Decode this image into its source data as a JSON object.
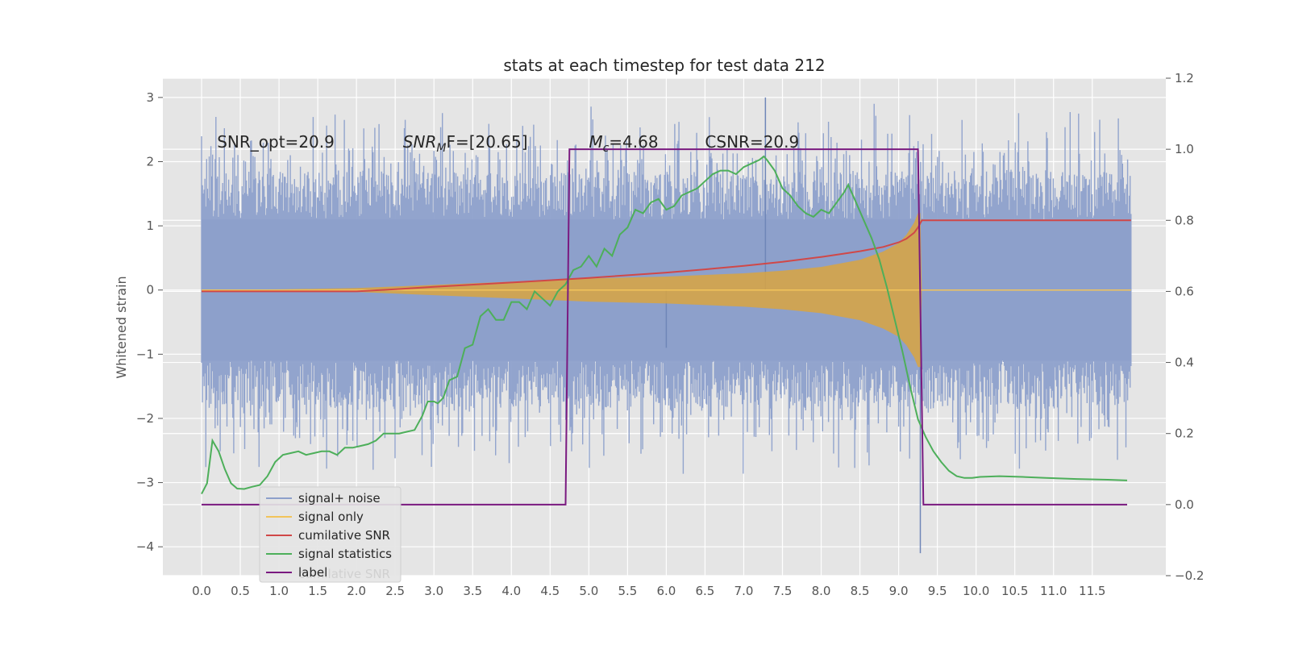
{
  "chart_data": {
    "type": "line",
    "title": "stats at each timestep for test data 212",
    "xlabel": "",
    "ylabel": "Whitened strain",
    "ylabel_right": "",
    "xlim": [
      -0.5,
      12.45
    ],
    "ylim": [
      -4.45,
      3.3
    ],
    "ylim_right": [
      -0.2,
      1.2
    ],
    "grid": true,
    "x_ticks": [
      "0.0",
      "0.5",
      "1.0",
      "1.5",
      "2.0",
      "2.5",
      "3.0",
      "3.5",
      "4.0",
      "4.5",
      "5.0",
      "5.5",
      "6.0",
      "6.5",
      "7.0",
      "7.5",
      "8.0",
      "8.5",
      "9.0",
      "9.5",
      "10.0",
      "10.5",
      "11.0",
      "11.5"
    ],
    "x_tick_values": [
      0.0,
      0.5,
      1.0,
      1.5,
      2.0,
      2.5,
      3.0,
      3.5,
      4.0,
      4.5,
      5.0,
      5.5,
      6.0,
      6.5,
      7.0,
      7.5,
      8.0,
      8.5,
      9.0,
      9.5,
      10.0,
      10.5,
      11.0,
      11.5
    ],
    "y_ticks": [
      "3",
      "2",
      "1",
      "0",
      "−1",
      "−2",
      "−3",
      "−4"
    ],
    "y_tick_values": [
      3,
      2,
      1,
      0,
      -1,
      -2,
      -3,
      -4
    ],
    "y_ticks_right": [
      "1.2",
      "1.0",
      "0.8",
      "0.6",
      "0.4",
      "0.2",
      "0.0",
      "−0.2"
    ],
    "y_tick_values_right": [
      1.2,
      1.0,
      0.8,
      0.6,
      0.4,
      0.2,
      0.0,
      -0.2
    ],
    "annotations": [
      {
        "text": "SNR_opt=20.9",
        "x": 0.2
      },
      {
        "text": "SNR",
        "sub": "M",
        "suffix": "F=[20.65]",
        "italic": true,
        "x": 2.6
      },
      {
        "text": "M",
        "sub": "c",
        "suffix": "=4.68",
        "italic": true,
        "x": 5.0
      },
      {
        "text": "CSNR=20.9",
        "x": 6.5
      }
    ],
    "annotation_y": 2.22,
    "legend": {
      "position": "lower left",
      "entries": [
        {
          "label": "signal+ noise",
          "color": "#8da0cb"
        },
        {
          "label": "signal only",
          "color": "#f2c45a"
        },
        {
          "label": "cumilative SNR",
          "color": "#d04848"
        },
        {
          "label": "signal statistics",
          "color": "#4daf5a"
        },
        {
          "label": "label",
          "color": "#7a1a80"
        }
      ],
      "ghost_text": "cumilative SNR"
    },
    "series": [
      {
        "name": "signal+ noise",
        "axis": "left",
        "color": "#8da0cb",
        "x_range": [
          0.0,
          12.0
        ],
        "envelope_typical": [
          -1.1,
          1.1
        ],
        "envelope_peak": [
          -3.3,
          3.0
        ],
        "notable_spikes": [
          {
            "x": 6.0,
            "y": -0.9
          },
          {
            "x": 9.28,
            "y": -4.1
          },
          {
            "x": 7.28,
            "y": 3.0
          }
        ]
      },
      {
        "name": "signal only",
        "axis": "left",
        "color": "#d9a441",
        "x": [
          0.0,
          1.0,
          2.0,
          3.0,
          4.0,
          5.0,
          6.0,
          7.0,
          7.5,
          8.0,
          8.5,
          8.8,
          9.0,
          9.1,
          9.2,
          9.25,
          9.28,
          9.3,
          12.0
        ],
        "amplitude": [
          0.0,
          0.01,
          0.03,
          0.08,
          0.13,
          0.18,
          0.21,
          0.26,
          0.3,
          0.36,
          0.47,
          0.6,
          0.73,
          0.86,
          1.05,
          1.2,
          1.2,
          0.0,
          0.0
        ]
      },
      {
        "name": "cumilative SNR",
        "axis": "right",
        "color": "#d04848",
        "x": [
          0.0,
          1.0,
          2.0,
          2.5,
          3.0,
          4.0,
          5.0,
          6.0,
          6.5,
          7.0,
          7.5,
          8.0,
          8.5,
          8.8,
          9.0,
          9.1,
          9.2,
          9.25,
          9.3,
          12.0
        ],
        "y": [
          0.6,
          0.6,
          0.6,
          0.606,
          0.613,
          0.625,
          0.638,
          0.653,
          0.662,
          0.672,
          0.683,
          0.697,
          0.713,
          0.725,
          0.738,
          0.748,
          0.765,
          0.78,
          0.8,
          0.8
        ]
      },
      {
        "name": "signal statistics",
        "axis": "right",
        "color": "#4daf5a",
        "x": [
          0.0,
          0.07,
          0.14,
          0.22,
          0.3,
          0.38,
          0.46,
          0.55,
          0.65,
          0.75,
          0.85,
          0.95,
          1.05,
          1.15,
          1.25,
          1.35,
          1.45,
          1.55,
          1.65,
          1.75,
          1.85,
          1.95,
          2.05,
          2.15,
          2.25,
          2.35,
          2.45,
          2.55,
          2.65,
          2.75,
          2.85,
          2.92,
          3.0,
          3.05,
          3.12,
          3.2,
          3.3,
          3.4,
          3.5,
          3.6,
          3.7,
          3.8,
          3.9,
          4.0,
          4.1,
          4.2,
          4.3,
          4.4,
          4.5,
          4.6,
          4.7,
          4.8,
          4.9,
          5.0,
          5.1,
          5.2,
          5.3,
          5.4,
          5.5,
          5.6,
          5.7,
          5.8,
          5.9,
          6.0,
          6.1,
          6.2,
          6.3,
          6.4,
          6.5,
          6.6,
          6.7,
          6.8,
          6.9,
          7.0,
          7.1,
          7.2,
          7.26,
          7.3,
          7.4,
          7.5,
          7.6,
          7.7,
          7.8,
          7.9,
          8.0,
          8.1,
          8.2,
          8.3,
          8.35,
          8.45,
          8.55,
          8.65,
          8.75,
          8.85,
          8.95,
          9.05,
          9.15,
          9.25,
          9.35,
          9.45,
          9.55,
          9.65,
          9.75,
          9.85,
          9.95,
          10.05,
          10.3,
          10.6,
          10.9,
          11.3,
          11.7,
          11.95
        ],
        "y": [
          0.03,
          0.06,
          0.18,
          0.15,
          0.1,
          0.06,
          0.045,
          0.044,
          0.05,
          0.055,
          0.08,
          0.12,
          0.14,
          0.145,
          0.15,
          0.14,
          0.145,
          0.15,
          0.15,
          0.14,
          0.16,
          0.16,
          0.165,
          0.17,
          0.18,
          0.2,
          0.2,
          0.2,
          0.205,
          0.21,
          0.25,
          0.29,
          0.29,
          0.285,
          0.3,
          0.35,
          0.36,
          0.44,
          0.45,
          0.53,
          0.55,
          0.52,
          0.52,
          0.57,
          0.57,
          0.55,
          0.6,
          0.58,
          0.56,
          0.6,
          0.62,
          0.66,
          0.67,
          0.7,
          0.67,
          0.72,
          0.7,
          0.76,
          0.78,
          0.83,
          0.82,
          0.85,
          0.86,
          0.83,
          0.84,
          0.87,
          0.88,
          0.89,
          0.91,
          0.93,
          0.94,
          0.94,
          0.93,
          0.95,
          0.96,
          0.97,
          0.98,
          0.97,
          0.94,
          0.89,
          0.87,
          0.84,
          0.82,
          0.81,
          0.83,
          0.82,
          0.85,
          0.88,
          0.9,
          0.85,
          0.8,
          0.75,
          0.69,
          0.61,
          0.52,
          0.43,
          0.33,
          0.24,
          0.19,
          0.15,
          0.12,
          0.095,
          0.08,
          0.075,
          0.075,
          0.078,
          0.08,
          0.078,
          0.075,
          0.072,
          0.07,
          0.068
        ]
      },
      {
        "name": "label",
        "axis": "right",
        "color": "#7a1a80",
        "x": [
          0.0,
          4.7,
          4.75,
          9.25,
          9.32,
          11.95
        ],
        "y": [
          0.0,
          0.0,
          1.0,
          1.0,
          0.0,
          0.0
        ]
      }
    ]
  }
}
